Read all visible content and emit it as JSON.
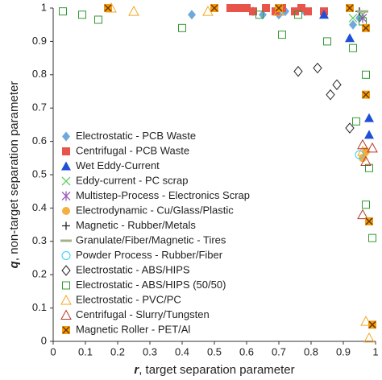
{
  "chart_data": {
    "type": "scatter",
    "xlabel_var": "r",
    "xlabel": ", target separation parameter",
    "ylabel_var": "q",
    "ylabel": ", non-target separation parameter",
    "xlim": [
      0,
      1
    ],
    "ylim": [
      0,
      1
    ],
    "xticks": [
      0,
      0.1,
      0.2,
      0.3,
      0.4,
      0.5,
      0.6,
      0.7,
      0.8,
      0.9,
      1
    ],
    "yticks": [
      0,
      0.1,
      0.2,
      0.3,
      0.4,
      0.5,
      0.6,
      0.7,
      0.8,
      0.9,
      1
    ],
    "grid": false,
    "legend": "lower left",
    "series": [
      {
        "name": "Electrostatic - PCB Waste",
        "color": "#6fa8dc",
        "marker": "diamond",
        "x": [
          0.43,
          0.62,
          0.65,
          0.7,
          0.72,
          0.78,
          0.93,
          0.95
        ],
        "values": [
          0.98,
          0.99,
          0.98,
          0.98,
          0.99,
          0.99,
          0.95,
          0.97
        ]
      },
      {
        "name": "Centrifugal - PCB Waste",
        "color": "#e8534a",
        "marker": "square",
        "x": [
          0.55,
          0.57,
          0.58,
          0.6,
          0.62,
          0.66,
          0.69,
          0.71,
          0.75,
          0.77,
          0.79,
          0.84
        ],
        "values": [
          1,
          1,
          1,
          1,
          0.99,
          1,
          0.99,
          1,
          0.99,
          1,
          0.99,
          0.99
        ]
      },
      {
        "name": "Wet Eddy-Current",
        "color": "#1f4fd6",
        "marker": "triangle",
        "x": [
          0.84,
          0.92,
          0.98,
          0.98
        ],
        "values": [
          0.98,
          0.91,
          0.62,
          0.67
        ]
      },
      {
        "name": "Eddy-current - PC scrap",
        "color": "#66cc66",
        "marker": "x",
        "x": [
          0.93,
          0.96
        ],
        "values": [
          0.97,
          0.98
        ]
      },
      {
        "name": "Multistep-Process - Electronics Scrap",
        "color": "#9b59b6",
        "marker": "star",
        "x": [
          0.96
        ],
        "values": [
          0.97
        ]
      },
      {
        "name": "Electrodynamic - Cu/Glass/Plastic",
        "color": "#f5b041",
        "marker": "circle",
        "x": [
          0.97,
          0.96
        ],
        "values": [
          0.57,
          0.55
        ]
      },
      {
        "name": "Magnetic - Rubber/Metals",
        "color": "#222222",
        "marker": "plus",
        "x": [
          0.95
        ],
        "values": [
          0.99
        ]
      },
      {
        "name": "Granulate/Fiber/Magnetic - Tires",
        "color": "#a3b18a",
        "marker": "dash",
        "x": [
          0.96
        ],
        "values": [
          0.99
        ]
      },
      {
        "name": "Powder Process - Rubber/Fiber",
        "color": "#33ccff",
        "marker": "open-circle",
        "x": [
          0.95
        ],
        "values": [
          0.56
        ]
      },
      {
        "name": "Electrostatic - ABS/HIPS",
        "color": "#222222",
        "marker": "open-diamond",
        "x": [
          0.76,
          0.82,
          0.86,
          0.88,
          0.92
        ],
        "values": [
          0.81,
          0.82,
          0.74,
          0.77,
          0.64
        ]
      },
      {
        "name": "Electrostatic - ABS/HIPS (50/50)",
        "color": "#339933",
        "marker": "open-square",
        "x": [
          0.03,
          0.09,
          0.14,
          0.4,
          0.64,
          0.71,
          0.76,
          0.85,
          0.93,
          0.96,
          0.97,
          0.94,
          0.98,
          0.99,
          0.97
        ],
        "values": [
          0.99,
          0.98,
          0.965,
          0.94,
          0.98,
          0.92,
          0.98,
          0.9,
          0.88,
          0.96,
          0.8,
          0.66,
          0.52,
          0.31,
          0.41
        ]
      },
      {
        "name": "Electrostatic - PVC/PC",
        "color": "#f5a623",
        "marker": "open-triangle",
        "x": [
          0.18,
          0.25,
          0.48,
          0.7,
          0.96,
          0.97,
          0.98
        ],
        "values": [
          1,
          0.99,
          0.99,
          0.99,
          0.57,
          0.06,
          0.01
        ]
      },
      {
        "name": "Centrifugal - Slurry/Tungsten",
        "color": "#b03a2e",
        "marker": "open-triangle",
        "x": [
          0.96,
          0.96,
          0.97,
          0.99
        ],
        "values": [
          0.38,
          0.59,
          0.54,
          0.58
        ]
      },
      {
        "name": "Magnetic Roller - PET/Al",
        "color": "#f39c12",
        "marker": "x-square",
        "x": [
          0.17,
          0.5,
          0.7,
          0.92,
          0.97,
          0.97,
          0.98,
          0.99
        ],
        "values": [
          1,
          1,
          1,
          1,
          0.94,
          0.74,
          0.36,
          0.05
        ]
      }
    ]
  }
}
